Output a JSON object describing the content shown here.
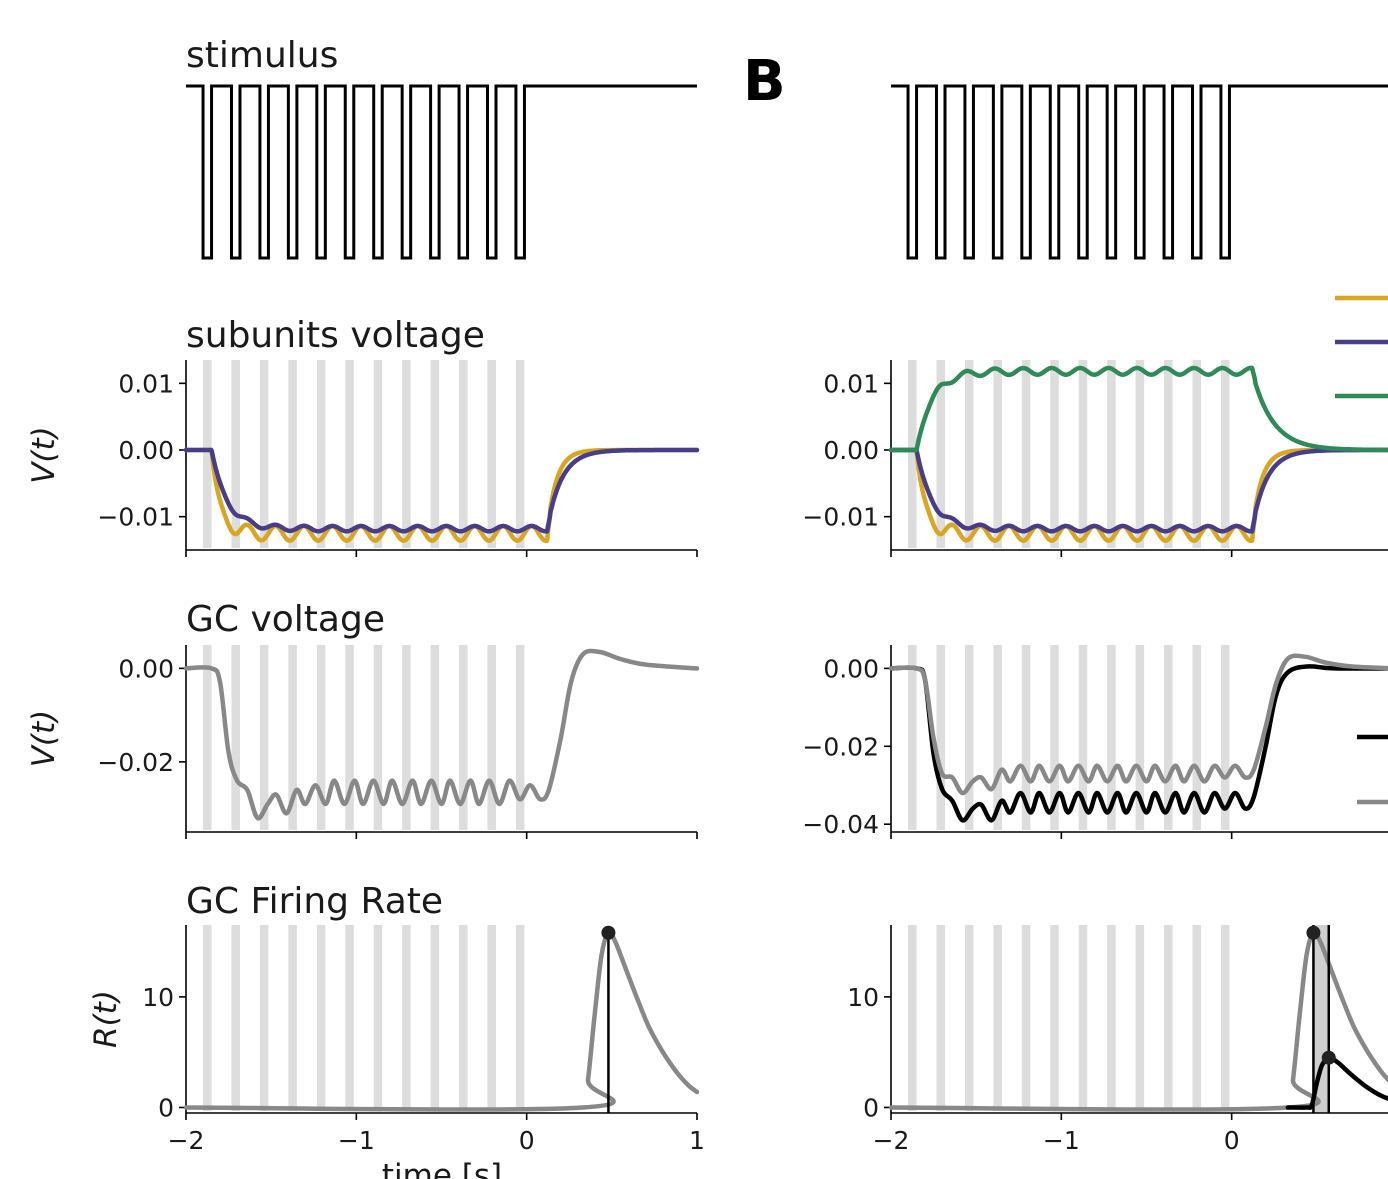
{
  "panel_labels": {
    "b": "B"
  },
  "colors": {
    "orange": "#DAA520",
    "purple": "#483D8B",
    "green": "#2E8B57",
    "black": "#000000",
    "gray": "#888888",
    "stim_bar": "#dddddd"
  },
  "left": {
    "stimulus_title": "stimulus",
    "subunits_title": "subunits voltage",
    "gc_voltage_title": "GC voltage",
    "firing_title": "GC Firing Rate",
    "xlabel": "time [s]"
  },
  "chart_data": [
    {
      "id": "stim_left",
      "type": "line",
      "title": "stimulus",
      "description_values": {
        "n_pulses": 12,
        "first_pulse_start": -1.9,
        "period": 0.167,
        "pulse_width": 0.05,
        "high": 1,
        "low": 0
      },
      "xlim": [
        -2,
        1
      ]
    },
    {
      "id": "sub_left",
      "type": "line",
      "title": "subunits voltage",
      "ylabel": "V(t)",
      "xlim": [
        -2,
        1
      ],
      "ylim": [
        -0.015,
        0.0135
      ],
      "yticks": [
        "0.01",
        "0.00",
        "−0.01"
      ],
      "ytick_values": [
        0.01,
        0.0,
        -0.01
      ],
      "series": [
        {
          "color": "orange",
          "baseline": 0.0,
          "plateau": -0.0125,
          "osc_amp": 0.0011,
          "onset": -1.85,
          "offset": 0.12,
          "tau_on": 0.05,
          "tau_off": 0.055
        },
        {
          "color": "purple",
          "baseline": 0.0,
          "plateau": -0.0118,
          "osc_amp": 0.0004,
          "onset": -1.85,
          "offset": 0.12,
          "tau_on": 0.09,
          "tau_off": 0.085
        }
      ]
    },
    {
      "id": "gc_left",
      "type": "line",
      "title": "GC voltage",
      "ylabel": "V(t)",
      "xlim": [
        -2,
        1
      ],
      "ylim": [
        -0.035,
        0.005
      ],
      "yticks": [
        "0.00",
        "−0.02"
      ],
      "ytick_values": [
        0.0,
        -0.02
      ],
      "series": [
        {
          "color": "gray",
          "points": [
            [
              -2,
              0
            ],
            [
              -1.85,
              0
            ],
            [
              -1.8,
              -0.003
            ],
            [
              -1.75,
              -0.018
            ],
            [
              -1.7,
              -0.024
            ],
            [
              -1.64,
              -0.026
            ],
            [
              -1.58,
              -0.032
            ],
            [
              -1.52,
              -0.029
            ],
            [
              -1.47,
              -0.027
            ],
            [
              -1.41,
              -0.031
            ],
            [
              -1.35,
              -0.026
            ],
            [
              -1.3,
              -0.029
            ],
            [
              -1.24,
              -0.025
            ],
            [
              -1.18,
              -0.029
            ],
            [
              -1.13,
              -0.024
            ],
            [
              -1.07,
              -0.029
            ],
            [
              -1.01,
              -0.024
            ],
            [
              -0.96,
              -0.029
            ],
            [
              -0.9,
              -0.024
            ],
            [
              -0.84,
              -0.029
            ],
            [
              -0.79,
              -0.024
            ],
            [
              -0.73,
              -0.029
            ],
            [
              -0.67,
              -0.024
            ],
            [
              -0.62,
              -0.029
            ],
            [
              -0.56,
              -0.024
            ],
            [
              -0.5,
              -0.029
            ],
            [
              -0.45,
              -0.024
            ],
            [
              -0.39,
              -0.029
            ],
            [
              -0.33,
              -0.024
            ],
            [
              -0.28,
              -0.029
            ],
            [
              -0.22,
              -0.024
            ],
            [
              -0.16,
              -0.029
            ],
            [
              -0.1,
              -0.024
            ],
            [
              -0.04,
              -0.028
            ],
            [
              0.02,
              -0.025
            ],
            [
              0.08,
              -0.028
            ],
            [
              0.13,
              -0.026
            ],
            [
              0.2,
              -0.015
            ],
            [
              0.26,
              -0.003
            ],
            [
              0.33,
              0.003
            ],
            [
              0.43,
              0.0035
            ],
            [
              0.55,
              0.002
            ],
            [
              0.7,
              0.0008
            ],
            [
              1.0,
              0.0
            ]
          ]
        }
      ]
    },
    {
      "id": "fr_left",
      "type": "line",
      "title": "GC Firing Rate",
      "ylabel": "R(t)",
      "xlabel": "time [s]",
      "xlim": [
        -2,
        1
      ],
      "ylim": [
        -0.5,
        16.5
      ],
      "xticks": [
        "−2",
        "−1",
        "0",
        "1"
      ],
      "xtick_values": [
        -2,
        -1,
        0,
        1
      ],
      "yticks": [
        "10",
        "0"
      ],
      "ytick_values": [
        10,
        0
      ],
      "peak": {
        "x": 0.48,
        "y": 15.8
      },
      "series": [
        {
          "color": "gray",
          "points": [
            [
              -2,
              0
            ],
            [
              0.33,
              0
            ],
            [
              0.36,
              2.5
            ],
            [
              0.4,
              8.5
            ],
            [
              0.44,
              13.8
            ],
            [
              0.48,
              15.8
            ],
            [
              0.52,
              15.0
            ],
            [
              0.58,
              12.6
            ],
            [
              0.65,
              9.8
            ],
            [
              0.72,
              7.2
            ],
            [
              0.8,
              5.0
            ],
            [
              0.88,
              3.2
            ],
            [
              0.95,
              2.0
            ],
            [
              1.0,
              1.4
            ]
          ]
        }
      ]
    },
    {
      "id": "stim_right",
      "type": "line",
      "description_values": {
        "n_pulses": 12,
        "first_pulse_start": -1.9,
        "period": 0.167,
        "pulse_width": 0.05,
        "high": 1,
        "low": 0
      },
      "xlim": [
        -2,
        1
      ]
    },
    {
      "id": "sub_right",
      "type": "line",
      "xlim": [
        -2,
        1
      ],
      "ylim": [
        -0.015,
        0.0135
      ],
      "yticks": [
        "0.01",
        "0.00",
        "−0.01"
      ],
      "ytick_values": [
        0.01,
        0.0,
        -0.01
      ],
      "series": [
        {
          "color": "orange",
          "baseline": 0.0,
          "plateau": -0.0125,
          "osc_amp": 0.0011,
          "onset": -1.85,
          "offset": 0.12,
          "tau_on": 0.05,
          "tau_off": 0.055
        },
        {
          "color": "purple",
          "baseline": 0.0,
          "plateau": -0.0118,
          "osc_amp": 0.0004,
          "onset": -1.85,
          "offset": 0.12,
          "tau_on": 0.09,
          "tau_off": 0.085
        },
        {
          "color": "green",
          "baseline": 0.0,
          "plateau": 0.0118,
          "osc_amp": 0.0005,
          "onset": -1.85,
          "offset": 0.12,
          "tau_on": 0.09,
          "tau_off": 0.12
        }
      ]
    },
    {
      "id": "gc_right",
      "type": "line",
      "xlim": [
        -2,
        1
      ],
      "ylim": [
        -0.042,
        0.006
      ],
      "yticks": [
        "0.00",
        "−0.02",
        "−0.04"
      ],
      "ytick_values": [
        0.0,
        -0.02,
        -0.04
      ],
      "series": [
        {
          "color": "black",
          "points": [
            [
              -2,
              0
            ],
            [
              -1.85,
              0
            ],
            [
              -1.8,
              -0.003
            ],
            [
              -1.75,
              -0.022
            ],
            [
              -1.7,
              -0.031
            ],
            [
              -1.64,
              -0.034
            ],
            [
              -1.58,
              -0.039
            ],
            [
              -1.52,
              -0.036
            ],
            [
              -1.47,
              -0.035
            ],
            [
              -1.41,
              -0.039
            ],
            [
              -1.35,
              -0.034
            ],
            [
              -1.3,
              -0.037
            ],
            [
              -1.24,
              -0.032
            ],
            [
              -1.18,
              -0.037
            ],
            [
              -1.13,
              -0.032
            ],
            [
              -1.07,
              -0.037
            ],
            [
              -1.01,
              -0.032
            ],
            [
              -0.96,
              -0.037
            ],
            [
              -0.9,
              -0.032
            ],
            [
              -0.84,
              -0.037
            ],
            [
              -0.79,
              -0.032
            ],
            [
              -0.73,
              -0.037
            ],
            [
              -0.67,
              -0.032
            ],
            [
              -0.62,
              -0.037
            ],
            [
              -0.56,
              -0.032
            ],
            [
              -0.5,
              -0.037
            ],
            [
              -0.45,
              -0.032
            ],
            [
              -0.39,
              -0.037
            ],
            [
              -0.33,
              -0.032
            ],
            [
              -0.28,
              -0.037
            ],
            [
              -0.22,
              -0.032
            ],
            [
              -0.16,
              -0.037
            ],
            [
              -0.1,
              -0.032
            ],
            [
              -0.04,
              -0.036
            ],
            [
              0.02,
              -0.032
            ],
            [
              0.08,
              -0.036
            ],
            [
              0.13,
              -0.033
            ],
            [
              0.2,
              -0.02
            ],
            [
              0.26,
              -0.007
            ],
            [
              0.33,
              -0.001
            ],
            [
              0.45,
              0.0005
            ],
            [
              0.6,
              0.0
            ],
            [
              0.95,
              0.0
            ]
          ]
        },
        {
          "color": "gray",
          "points": [
            [
              -2,
              0
            ],
            [
              -1.85,
              0
            ],
            [
              -1.8,
              -0.003
            ],
            [
              -1.75,
              -0.018
            ],
            [
              -1.7,
              -0.027
            ],
            [
              -1.64,
              -0.028
            ],
            [
              -1.58,
              -0.032
            ],
            [
              -1.52,
              -0.029
            ],
            [
              -1.47,
              -0.028
            ],
            [
              -1.41,
              -0.031
            ],
            [
              -1.35,
              -0.026
            ],
            [
              -1.3,
              -0.029
            ],
            [
              -1.24,
              -0.025
            ],
            [
              -1.18,
              -0.029
            ],
            [
              -1.13,
              -0.025
            ],
            [
              -1.07,
              -0.029
            ],
            [
              -1.01,
              -0.025
            ],
            [
              -0.96,
              -0.029
            ],
            [
              -0.9,
              -0.025
            ],
            [
              -0.84,
              -0.029
            ],
            [
              -0.79,
              -0.025
            ],
            [
              -0.73,
              -0.029
            ],
            [
              -0.67,
              -0.025
            ],
            [
              -0.62,
              -0.029
            ],
            [
              -0.56,
              -0.025
            ],
            [
              -0.5,
              -0.029
            ],
            [
              -0.45,
              -0.025
            ],
            [
              -0.39,
              -0.029
            ],
            [
              -0.33,
              -0.025
            ],
            [
              -0.28,
              -0.029
            ],
            [
              -0.22,
              -0.025
            ],
            [
              -0.16,
              -0.029
            ],
            [
              -0.1,
              -0.025
            ],
            [
              -0.04,
              -0.028
            ],
            [
              0.02,
              -0.025
            ],
            [
              0.08,
              -0.028
            ],
            [
              0.13,
              -0.026
            ],
            [
              0.2,
              -0.015
            ],
            [
              0.26,
              -0.004
            ],
            [
              0.33,
              0.0025
            ],
            [
              0.43,
              0.003
            ],
            [
              0.55,
              0.0015
            ],
            [
              0.7,
              0.0005
            ],
            [
              0.95,
              0.0
            ]
          ]
        }
      ],
      "legend_swatches": [
        "black",
        "gray"
      ]
    },
    {
      "id": "fr_right",
      "type": "line",
      "xlim": [
        -2,
        1
      ],
      "ylim": [
        -0.5,
        16.5
      ],
      "xticks": [
        "−2",
        "−1",
        "0"
      ],
      "xtick_values": [
        -2,
        -1,
        0
      ],
      "yticks": [
        "10",
        "0"
      ],
      "ytick_values": [
        10,
        0
      ],
      "peaks": [
        {
          "x": 0.48,
          "y": 15.8,
          "color": "gray"
        },
        {
          "x": 0.57,
          "y": 4.5,
          "color": "black"
        }
      ],
      "shade": [
        0.48,
        0.57
      ],
      "series": [
        {
          "color": "gray",
          "points": [
            [
              -2,
              0
            ],
            [
              0.33,
              0
            ],
            [
              0.36,
              2.5
            ],
            [
              0.4,
              8.5
            ],
            [
              0.44,
              13.8
            ],
            [
              0.48,
              15.8
            ],
            [
              0.52,
              15.0
            ],
            [
              0.58,
              12.6
            ],
            [
              0.65,
              9.8
            ],
            [
              0.72,
              7.2
            ],
            [
              0.8,
              5.0
            ],
            [
              0.88,
              3.2
            ],
            [
              0.95,
              2.0
            ]
          ]
        },
        {
          "color": "black",
          "points": [
            [
              0.33,
              0
            ],
            [
              0.44,
              0
            ],
            [
              0.47,
              0.2
            ],
            [
              0.5,
              2.2
            ],
            [
              0.53,
              3.8
            ],
            [
              0.57,
              4.5
            ],
            [
              0.62,
              4.1
            ],
            [
              0.7,
              3.0
            ],
            [
              0.78,
              2.0
            ],
            [
              0.86,
              1.2
            ],
            [
              0.95,
              0.6
            ]
          ]
        }
      ]
    }
  ]
}
